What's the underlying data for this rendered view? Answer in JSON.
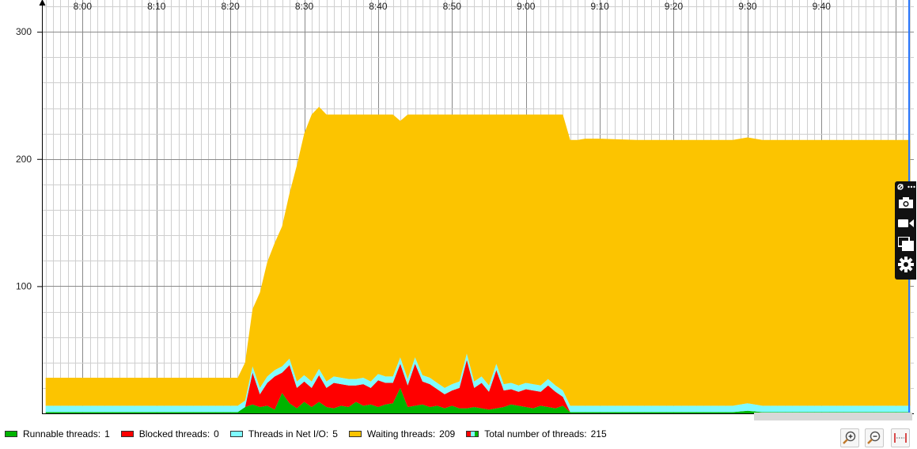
{
  "chart_data": {
    "type": "area",
    "stacked": true,
    "x_axis": {
      "ticks": [
        "8:00",
        "8:10",
        "8:20",
        "8:30",
        "8:40",
        "8:50",
        "9:00",
        "9:10",
        "9:20",
        "9:30",
        "9:40"
      ],
      "position": "top",
      "range": [
        "7:54.5",
        "9:52.5"
      ]
    },
    "y_axis": {
      "ticks": [
        100,
        200,
        300
      ],
      "range": [
        0,
        325
      ]
    },
    "grid": true,
    "legend_position": "bottom-left",
    "x": [
      "7:55",
      "8:18",
      "8:21",
      "8:22",
      "8:23",
      "8:24",
      "8:25",
      "8:26",
      "8:27",
      "8:28",
      "8:29",
      "8:30",
      "8:31",
      "8:32",
      "8:33",
      "8:34",
      "8:35",
      "8:36",
      "8:37",
      "8:38",
      "8:39",
      "8:40",
      "8:41",
      "8:42",
      "8:43",
      "8:44",
      "8:45",
      "8:46",
      "8:47",
      "8:48",
      "8:49",
      "8:50",
      "8:51",
      "8:52",
      "8:53",
      "8:54",
      "8:55",
      "8:56",
      "8:57",
      "8:58",
      "8:59",
      "9:00",
      "9:01",
      "9:02",
      "9:03",
      "9:04",
      "9:05",
      "9:06",
      "9:07",
      "9:08",
      "9:10",
      "9:15",
      "9:28",
      "9:30",
      "9:32",
      "9:52"
    ],
    "series": [
      {
        "name": "Runnable threads",
        "color": "#00b400",
        "values": [
          1,
          1,
          1,
          5,
          7,
          5,
          6,
          3,
          16,
          8,
          4,
          9,
          5,
          9,
          5,
          4,
          6,
          5,
          9,
          6,
          7,
          5,
          7,
          8,
          20,
          5,
          6,
          7,
          5,
          6,
          4,
          6,
          4,
          4,
          5,
          4,
          3,
          4,
          5,
          7,
          6,
          5,
          4,
          6,
          5,
          4,
          6,
          1,
          1,
          1,
          1,
          1,
          1,
          2,
          1,
          1
        ]
      },
      {
        "name": "Blocked threads",
        "color": "#ff0000",
        "values": [
          0,
          0,
          0,
          0,
          25,
          10,
          18,
          26,
          16,
          30,
          16,
          16,
          15,
          21,
          15,
          20,
          17,
          17,
          13,
          17,
          13,
          21,
          17,
          16,
          19,
          17,
          33,
          18,
          18,
          13,
          11,
          12,
          16,
          38,
          15,
          20,
          14,
          30,
          13,
          12,
          11,
          14,
          14,
          11,
          17,
          13,
          7,
          0,
          0,
          0,
          0,
          0,
          0,
          0,
          0,
          0
        ]
      },
      {
        "name": "Threads in Net I/O",
        "color": "#7ffbff",
        "values": [
          5,
          5,
          5,
          5,
          5,
          5,
          5,
          5,
          5,
          5,
          5,
          5,
          5,
          5,
          5,
          5,
          5,
          5,
          5,
          5,
          5,
          5,
          5,
          5,
          5,
          5,
          5,
          5,
          5,
          5,
          5,
          5,
          5,
          5,
          5,
          5,
          5,
          5,
          5,
          5,
          5,
          5,
          5,
          5,
          5,
          5,
          5,
          5,
          5,
          5,
          5,
          5,
          5,
          6,
          5,
          5
        ]
      },
      {
        "name": "Waiting threads",
        "color": "#fcc400",
        "values": [
          22,
          22,
          22,
          30,
          45,
          75,
          90,
          100,
          110,
          130,
          170,
          190,
          210,
          206,
          210,
          206,
          207,
          208,
          208,
          207,
          210,
          204,
          206,
          206,
          186,
          208,
          191,
          205,
          207,
          211,
          215,
          212,
          210,
          188,
          210,
          206,
          213,
          196,
          212,
          211,
          213,
          211,
          212,
          213,
          208,
          213,
          217,
          209,
          209,
          210,
          210,
          209,
          209,
          209,
          209,
          209
        ]
      }
    ]
  },
  "legend": {
    "items": [
      {
        "label": "Runnable threads:",
        "value": "1",
        "color": "#00b400"
      },
      {
        "label": "Blocked threads:",
        "value": "0",
        "color": "#ff0000"
      },
      {
        "label": "Threads in Net I/O:",
        "value": "5",
        "color": "#7ffbff"
      },
      {
        "label": "Waiting threads:",
        "value": "209",
        "color": "#fcc400"
      }
    ],
    "total_label": "Total number of threads:",
    "total_value": "215"
  },
  "toolbar": {
    "icons": [
      "pin-icon",
      "more-icon",
      "camera-icon",
      "video-icon",
      "copy-icon",
      "settings-icon"
    ]
  },
  "zoom": {
    "icons": [
      "zoom-in-icon",
      "zoom-out-icon",
      "fit-width-icon"
    ]
  }
}
